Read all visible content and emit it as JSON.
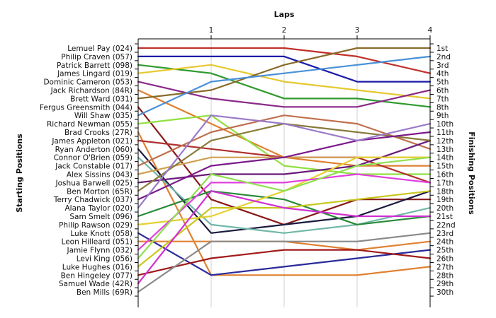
{
  "chart_data": {
    "type": "line",
    "xlabel": "Laps",
    "ylabel_left": "Starting Positions",
    "ylabel_right": "Finishing Positions",
    "x": [
      0,
      1,
      2,
      3,
      4
    ],
    "x_tick_labels": [
      "1",
      "2",
      "3",
      "4"
    ],
    "y_inverted": true,
    "ylim": [
      1,
      30
    ],
    "grid": "vertical",
    "legend": "none",
    "start_labels": [
      "Lemuel Pay (024)",
      "Philip Craven (057)",
      "Patrick Barrett (098)",
      "James Lingard (019)",
      "Dominic Cameron (053)",
      "Jack Richardson (84R)",
      "Brett Ward (031)",
      "Fergus Greensmith (044)",
      "Will Shaw (035)",
      "Richard Newman (055)",
      "Brad Crooks (27R)",
      "James Appleton (021)",
      "Ryan Anderton (060)",
      "Connor O'Brien (059)",
      "Jack Constable (017)",
      "Alex Sissins (043)",
      "Joshua Barwell (025)",
      "Ben Morton (65R)",
      "Terry Chadwick (037)",
      "Alana Taylor (020)",
      "Sam Smelt (096)",
      "Philip Rawson (029)",
      "Luke Knott (058)",
      "Leon Hilleard (051)",
      "Jamie Flynn (032)",
      "Levi King (056)",
      "Luke Hughes (016)",
      "Ben Hingeley (077)",
      "Samuel Wade (42R)",
      "Ben Mills (69R)"
    ],
    "finish_labels": [
      "1st",
      "2nd",
      "3rd",
      "4th",
      "5th",
      "6th",
      "7th",
      "8th",
      "9th",
      "10th",
      "11th",
      "12th",
      "13th",
      "14th",
      "15th",
      "16th",
      "17th",
      "18th",
      "19th",
      "20th",
      "21st",
      "22nd",
      "23rd",
      "24th",
      "25th",
      "26th",
      "27th",
      "28th",
      "29th",
      "30th"
    ],
    "series": [
      {
        "positions": [
          1,
          1,
          1,
          2,
          4
        ],
        "color": "#c0302a"
      },
      {
        "positions": [
          2,
          2,
          2,
          5,
          5
        ],
        "color": "#1c1ca8"
      },
      {
        "positions": [
          3,
          4,
          7,
          7,
          8
        ],
        "color": "#2e9a2e"
      },
      {
        "positions": [
          4,
          3,
          5,
          6,
          7
        ],
        "color": "#e6c830"
      },
      {
        "positions": [
          5,
          7,
          8,
          8,
          6
        ],
        "color": "#8a2a8a"
      },
      {
        "positions": [
          6,
          10,
          14,
          15,
          15
        ],
        "color": "#e08030"
      },
      {
        "positions": [
          7,
          6,
          3,
          1,
          1
        ],
        "color": "#8a6a2a"
      },
      {
        "positions": [
          8,
          19,
          22,
          19,
          19
        ],
        "color": "#8a1a1a"
      },
      {
        "positions": [
          9,
          5,
          4,
          3,
          2
        ],
        "color": "#4a90d8"
      },
      {
        "positions": [
          10,
          9,
          15,
          16,
          16
        ],
        "color": "#90e040"
      },
      {
        "positions": [
          11,
          28,
          28,
          28,
          27
        ],
        "color": "#e08030"
      },
      {
        "positions": [
          12,
          13,
          14,
          14,
          17
        ],
        "color": "#b03030"
      },
      {
        "positions": [
          13,
          23,
          22,
          21,
          18
        ],
        "color": "#1a1a40"
      },
      {
        "positions": [
          14,
          22,
          23,
          22,
          20
        ],
        "color": "#70b8a8"
      },
      {
        "positions": [
          15,
          11,
          9,
          10,
          13
        ],
        "color": "#c07050"
      },
      {
        "positions": [
          16,
          14,
          14,
          14,
          14
        ],
        "color": "#d0a050"
      },
      {
        "positions": [
          17,
          16,
          16,
          15,
          12
        ],
        "color": "#6a1a7a"
      },
      {
        "positions": [
          18,
          12,
          10,
          11,
          12
        ],
        "color": "#8a7a3a"
      },
      {
        "positions": [
          19,
          15,
          14,
          12,
          11
        ],
        "color": "#7a1a8a"
      },
      {
        "positions": [
          20,
          9,
          10,
          12,
          10
        ],
        "color": "#9a7ac8"
      },
      {
        "positions": [
          21,
          18,
          19,
          22,
          21
        ],
        "color": "#2a8a3a"
      },
      {
        "positions": [
          22,
          21,
          18,
          14,
          14
        ],
        "color": "#e6d030"
      },
      {
        "positions": [
          23,
          28,
          27,
          26,
          25
        ],
        "color": "#2a2a9a"
      },
      {
        "positions": [
          24,
          24,
          24,
          25,
          24
        ],
        "color": "#e08030"
      },
      {
        "positions": [
          25,
          17,
          17,
          16,
          17
        ],
        "color": "#e040e0"
      },
      {
        "positions": [
          26,
          16,
          18,
          15,
          14
        ],
        "color": "#90e050"
      },
      {
        "positions": [
          27,
          20,
          20,
          19,
          18
        ],
        "color": "#c8c820"
      },
      {
        "positions": [
          28,
          26,
          25,
          25,
          26
        ],
        "color": "#a01a1a"
      },
      {
        "positions": [
          29,
          18,
          20,
          21,
          21
        ],
        "color": "#d030d0"
      },
      {
        "positions": [
          30,
          24,
          24,
          24,
          23
        ],
        "color": "#8a8a8a"
      }
    ]
  }
}
